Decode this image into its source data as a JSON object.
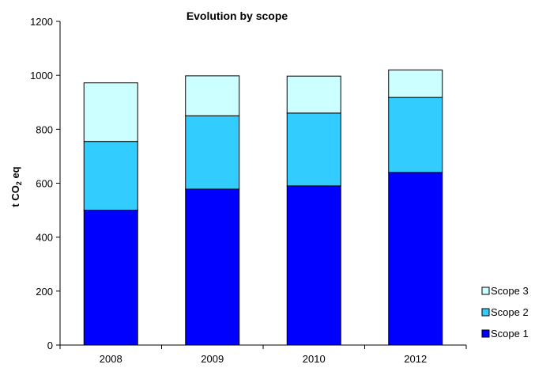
{
  "chart_data": {
    "type": "bar",
    "stacked": true,
    "title": "Evolution  by scope",
    "ylabel": "t CO2 eq",
    "xlabel": "",
    "ylim": [
      0,
      1200
    ],
    "yticks": [
      0,
      200,
      400,
      600,
      800,
      1000,
      1200
    ],
    "categories": [
      "2008",
      "2009",
      "2010",
      "2012"
    ],
    "series": [
      {
        "name": "Scope 1",
        "color": "#0000ff",
        "values": [
          500,
          578,
          590,
          640
        ]
      },
      {
        "name": "Scope 2",
        "color": "#33ccff",
        "values": [
          255,
          272,
          270,
          278
        ]
      },
      {
        "name": "Scope 3",
        "color": "#ccffff",
        "values": [
          217,
          148,
          137,
          102
        ]
      }
    ],
    "legend_position": "bottom-right",
    "grid": false
  }
}
